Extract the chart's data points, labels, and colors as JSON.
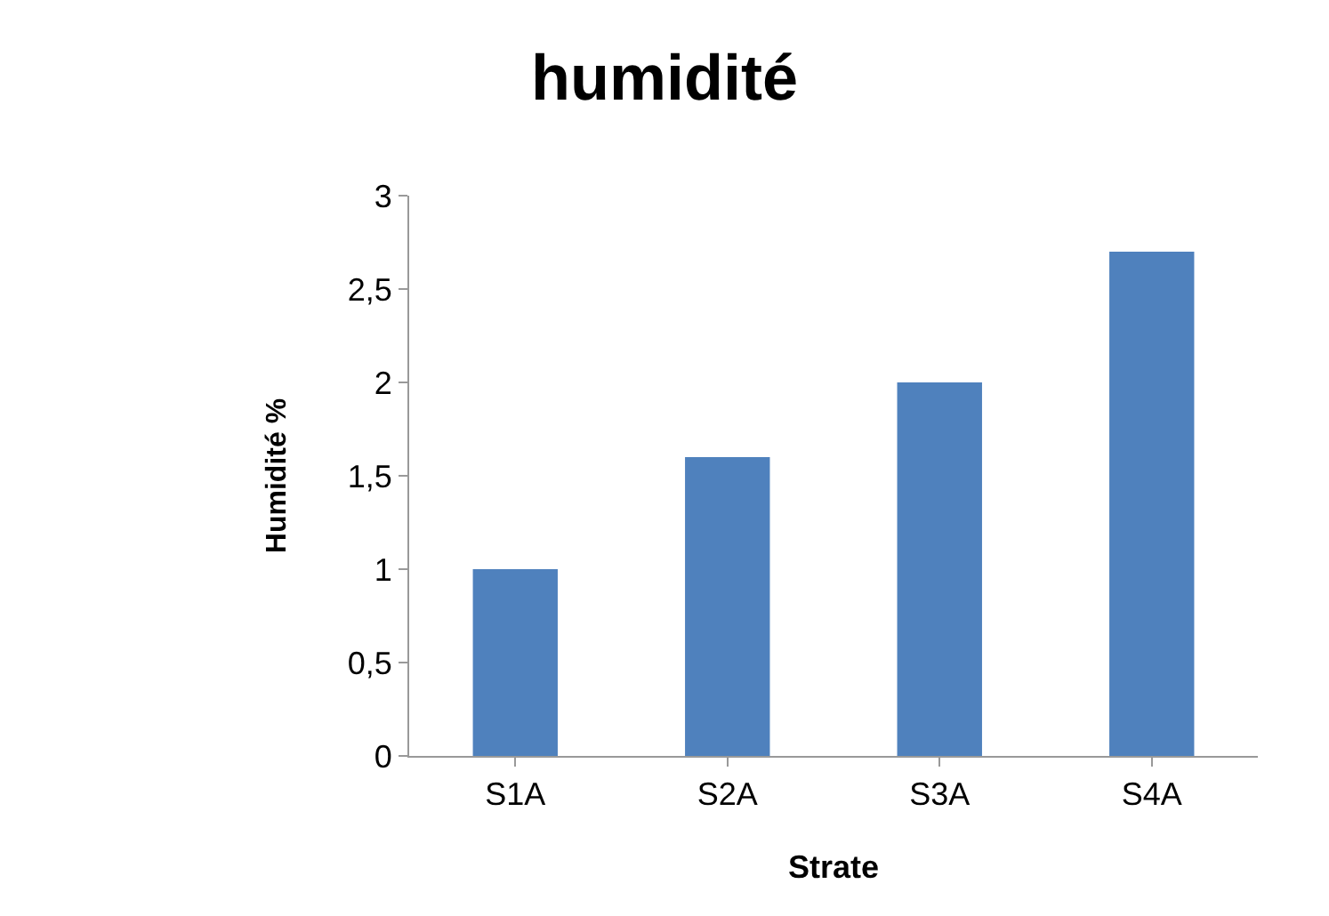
{
  "chart_data": {
    "type": "bar",
    "title": "humidité",
    "xlabel": "Strate",
    "ylabel": "Humidité %",
    "categories": [
      "S1A",
      "S2A",
      "S3A",
      "S4A"
    ],
    "series": [
      {
        "color": "#4f81bd",
        "values": [
          1,
          1.6,
          2,
          2.7
        ]
      }
    ],
    "ylim": [
      0,
      3
    ],
    "yticks": [
      0,
      {
        "value": 0.5,
        "label": "0,5"
      },
      1,
      {
        "value": 1.5,
        "label": "1,5"
      },
      2,
      {
        "value": 2.5,
        "label": "2,5"
      },
      3
    ],
    "grid": false
  }
}
